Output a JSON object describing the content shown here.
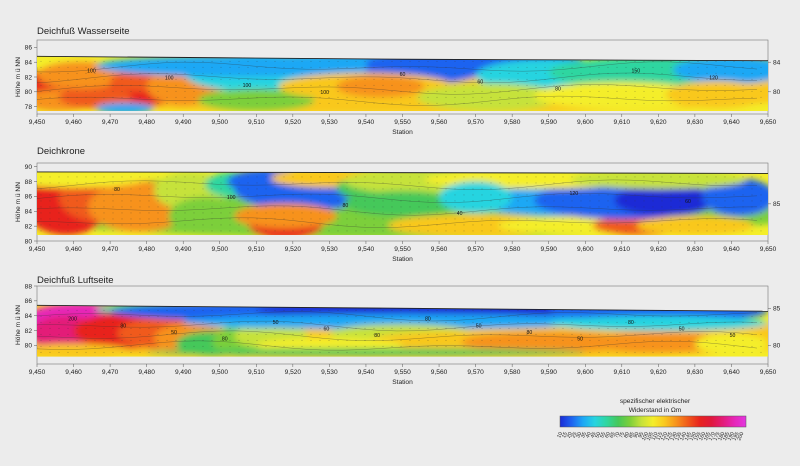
{
  "colorbar": {
    "title_line1": "spezifischer elektrischer",
    "title_line2": "Widerstand in Ωm",
    "ticks": [
      "10",
      "15",
      "20",
      "25",
      "30",
      "35",
      "40",
      "45",
      "50",
      "55",
      "60",
      "65",
      "70",
      "75",
      "80",
      "85",
      "90",
      "95",
      "100",
      "105",
      "110",
      "115",
      "120",
      "125",
      "130",
      "135",
      "140",
      "145",
      "150",
      "155",
      "160",
      "165",
      "170",
      "175",
      "180",
      "185",
      "190",
      "195",
      "200"
    ],
    "colors": [
      "#1a2bd6",
      "#1e63f0",
      "#1ea8f5",
      "#27d4e0",
      "#2fd6a0",
      "#45c85a",
      "#7ccf3a",
      "#c6e23a",
      "#f4ee2a",
      "#f9c81e",
      "#f7921c",
      "#f05a1a",
      "#e8241e",
      "#e0183c",
      "#e31c78",
      "#e626b8",
      "#e237e0"
    ]
  },
  "chart_data": [
    {
      "type": "heatmap",
      "title": "Deichfuß Wasserseite",
      "xlabel": "Station",
      "ylabel": "Höhe m ü NN",
      "xlim": [
        9450,
        9650
      ],
      "ylim": [
        77,
        87
      ],
      "xticks": [
        "9,450",
        "9,460",
        "9,470",
        "9,480",
        "9,490",
        "9,500",
        "9,510",
        "9,520",
        "9,530",
        "9,540",
        "9,550",
        "9,560",
        "9,570",
        "9,580",
        "9,590",
        "9,600",
        "9,610",
        "9,620",
        "9,630",
        "9,640",
        "9,650"
      ],
      "yticks": [
        "78",
        "80",
        "82",
        "84",
        "86"
      ],
      "ytick_values": [
        78,
        80,
        82,
        84,
        86
      ],
      "right_yticks": [
        "84",
        "80"
      ],
      "right_ytick_values": [
        84,
        80
      ],
      "surface": [
        [
          9450,
          84.8
        ],
        [
          9500,
          84.6
        ],
        [
          9550,
          84.4
        ],
        [
          9600,
          84.3
        ],
        [
          9650,
          84.2
        ]
      ],
      "base": [
        [
          9450,
          77.4
        ],
        [
          9650,
          77.4
        ]
      ],
      "contour_labels": [
        "100",
        "100",
        "100",
        "100",
        "60",
        "60",
        "80",
        "150",
        "120"
      ],
      "grid": false
    },
    {
      "type": "heatmap",
      "title": "Deichkrone",
      "xlabel": "Station",
      "ylabel": "Höhe m ü NN",
      "xlim": [
        9450,
        9650
      ],
      "ylim": [
        80,
        90.5
      ],
      "xticks": [
        "9,450",
        "9,460",
        "9,470",
        "9,480",
        "9,490",
        "9,500",
        "9,510",
        "9,520",
        "9,530",
        "9,540",
        "9,550",
        "9,560",
        "9,570",
        "9,580",
        "9,590",
        "9,600",
        "9,610",
        "9,620",
        "9,630",
        "9,640",
        "9,650"
      ],
      "yticks": [
        "80",
        "82",
        "84",
        "86",
        "88",
        "90"
      ],
      "ytick_values": [
        80,
        82,
        84,
        86,
        88,
        90
      ],
      "right_yticks": [
        "85"
      ],
      "right_ytick_values": [
        85
      ],
      "surface": [
        [
          9450,
          89.3
        ],
        [
          9650,
          89.1
        ]
      ],
      "base": [
        [
          9450,
          80.8
        ],
        [
          9650,
          80.8
        ]
      ],
      "contour_labels": [
        "80",
        "100",
        "80",
        "40",
        "120",
        "60"
      ],
      "grid": false
    },
    {
      "type": "heatmap",
      "title": "Deichfuß Luftseite",
      "xlabel": "Station",
      "ylabel": "Höhe m ü NN",
      "xlim": [
        9450,
        9650
      ],
      "ylim": [
        77.5,
        88
      ],
      "xticks": [
        "9,450",
        "9,460",
        "9,470",
        "9,480",
        "9,490",
        "9,500",
        "9,510",
        "9,520",
        "9,530",
        "9,540",
        "9,550",
        "9,560",
        "9,570",
        "9,580",
        "9,590",
        "9,600",
        "9,610",
        "9,620",
        "9,630",
        "9,640",
        "9,650"
      ],
      "yticks": [
        "80",
        "82",
        "84",
        "86",
        "88"
      ],
      "ytick_values": [
        80,
        82,
        84,
        86,
        88
      ],
      "right_yticks": [
        "85",
        "80"
      ],
      "right_ytick_values": [
        85,
        80
      ],
      "surface": [
        [
          9450,
          85.4
        ],
        [
          9650,
          84.6
        ]
      ],
      "base": [
        [
          9450,
          78.5
        ],
        [
          9650,
          78.5
        ]
      ],
      "contour_labels": [
        "200",
        "80",
        "50",
        "80",
        "50",
        "60",
        "80",
        "80",
        "50",
        "80",
        "50",
        "80",
        "50",
        "50"
      ],
      "grid": false
    }
  ]
}
